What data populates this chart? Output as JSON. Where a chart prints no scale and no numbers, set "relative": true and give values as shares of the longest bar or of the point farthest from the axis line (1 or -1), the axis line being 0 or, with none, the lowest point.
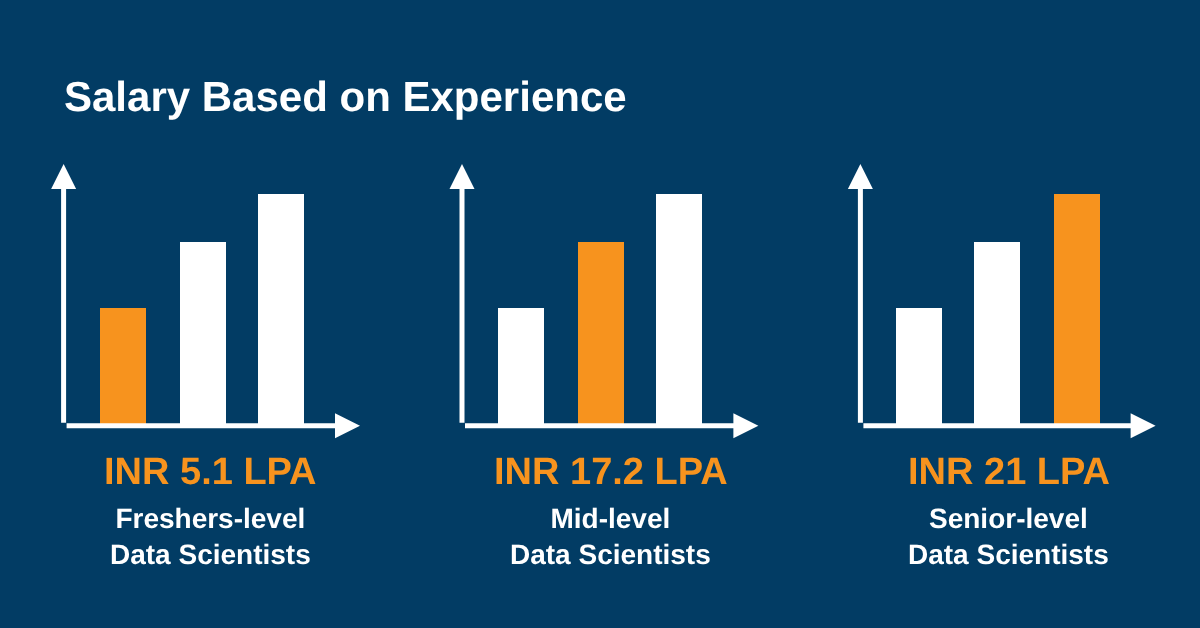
{
  "chart_data": [
    {
      "type": "bar",
      "title": "Salary Based on Experience",
      "relative": true,
      "categories": [
        null,
        null,
        null
      ],
      "colors": [
        "#f7931e",
        "#ffffff",
        "#ffffff"
      ],
      "values": [
        0.51,
        0.79,
        1
      ],
      "annotations": [
        "INR 5.1 LPA",
        "Freshers-level Data Scientists"
      ]
    },
    {
      "type": "bar",
      "relative": true,
      "categories": [
        null,
        null,
        null
      ],
      "colors": [
        "#ffffff",
        "#f7931e",
        "#ffffff"
      ],
      "values": [
        0.51,
        0.79,
        1
      ],
      "annotations": [
        "INR 17.2 LPA",
        "Mid-level Data Scientists"
      ]
    },
    {
      "type": "bar",
      "relative": true,
      "categories": [
        null,
        null,
        null
      ],
      "colors": [
        "#ffffff",
        "#ffffff",
        "#f7931e"
      ],
      "values": [
        0.51,
        0.79,
        1
      ],
      "annotations": [
        "INR 21 LPA",
        "Senior-level Data Scientists"
      ]
    }
  ]
}
